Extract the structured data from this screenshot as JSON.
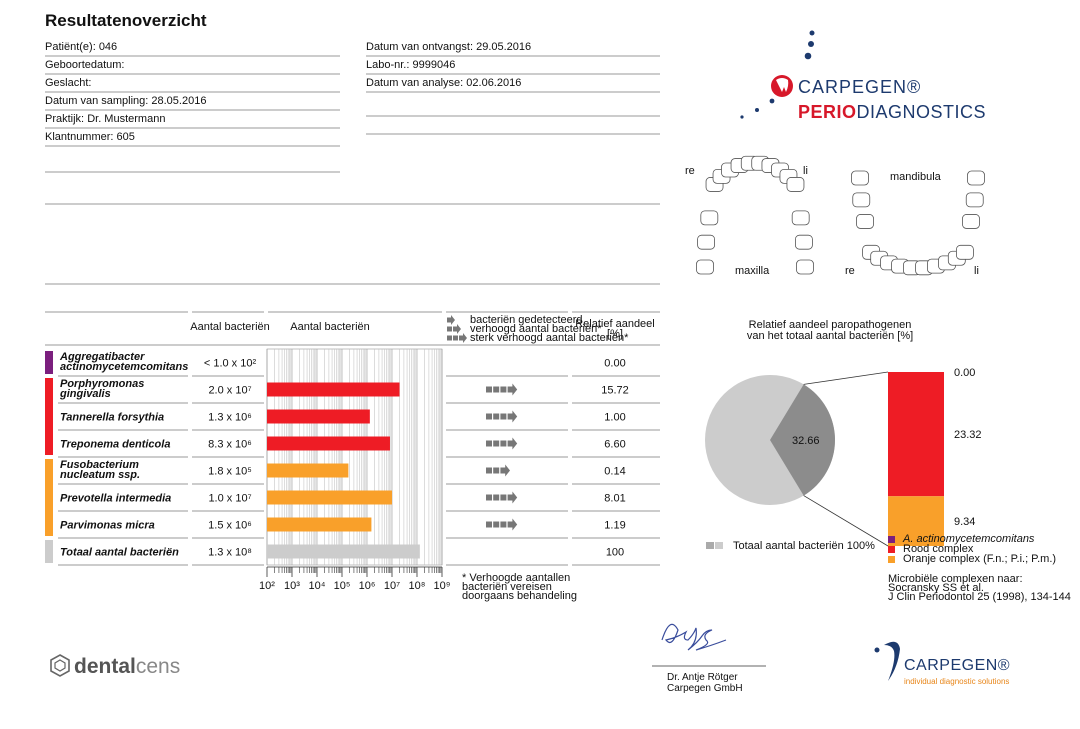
{
  "header": {
    "title": "Resultatenoverzicht"
  },
  "fields_left": [
    {
      "label": "Patiënt(e):",
      "value": "046"
    },
    {
      "label": "Geboortedatum:"
    },
    {
      "label": "Geslacht:"
    },
    {
      "label": "Datum van sampling:",
      "value": "28.05.2016"
    },
    {
      "label": "Praktijk:",
      "value": "Dr. Mustermann"
    },
    {
      "label": "Klantnummer:",
      "value": "605"
    }
  ],
  "fields_right": [
    {
      "label": "Datum van ontvangst:",
      "value": "29.05.2016"
    },
    {
      "label": "Labo-nr.:",
      "value": "9999046"
    },
    {
      "label": "Datum van analyse:",
      "value": "02.06.2016"
    }
  ],
  "logo_top": {
    "brand": "CARPEGEN®",
    "perio": "PERIO",
    "diagnostics": "DIAGNOSTICS"
  },
  "teeth": {
    "re_upper": "re",
    "li_upper": "li",
    "maxilla": "maxilla",
    "mandibula": "mandibula",
    "re_lower": "re",
    "li_lower": "li"
  },
  "table": {
    "col_count": "Aantal bacteriën",
    "col_bar": "Aantal bacteriën",
    "legend": [
      "bacteriën gedetecteerd",
      "verhoogd aantal bacteriën*",
      "sterk verhoogd aantal bacteriën*"
    ],
    "col_relative": [
      "Relatief aandeel",
      "[%]"
    ],
    "log": true,
    "xlim": [
      100,
      1000000000
    ],
    "xticks": [
      {
        "value": 100,
        "label": "10²"
      },
      {
        "value": 1000,
        "label": "10³"
      },
      {
        "value": 10000,
        "label": "10⁴"
      },
      {
        "value": 100000,
        "label": "10⁵"
      },
      {
        "value": 1000000,
        "label": "10⁶"
      },
      {
        "value": 10000000,
        "label": "10⁷"
      },
      {
        "value": 100000000,
        "label": "10⁸"
      },
      {
        "value": 1000000000,
        "label": "10⁹"
      }
    ],
    "rows": [
      {
        "name": [
          "Aggregatibacter",
          "actinomycetemcomitans"
        ],
        "color": "#7b1f7e",
        "count": 100,
        "count_label": "< 1.0 x 10²",
        "level": 0,
        "relative": "0.00"
      },
      {
        "name": [
          "Porphyromonas",
          "gingivalis"
        ],
        "color": "#ee1c25",
        "count": 20000000,
        "count_label": "2.0 x 10⁷",
        "level": 3,
        "relative": "15.72"
      },
      {
        "name": [
          "Tannerella forsythia"
        ],
        "color": "#ee1c25",
        "count": 1300000,
        "count_label": "1.3 x 10⁶",
        "level": 3,
        "relative": "1.00"
      },
      {
        "name": [
          "Treponema denticola"
        ],
        "color": "#ee1c25",
        "count": 8300000,
        "count_label": "8.3 x 10⁶",
        "level": 3,
        "relative": "6.60"
      },
      {
        "name": [
          "Fusobacterium",
          "nucleatum ssp."
        ],
        "color": "#f9a02a",
        "count": 180000,
        "count_label": "1.8 x 10⁵",
        "level": 2,
        "relative": "0.14"
      },
      {
        "name": [
          "Prevotella intermedia"
        ],
        "color": "#f9a02a",
        "count": 10000000,
        "count_label": "1.0 x 10⁷",
        "level": 3,
        "relative": "8.01"
      },
      {
        "name": [
          "Parvimonas micra"
        ],
        "color": "#f9a02a",
        "count": 1500000,
        "count_label": "1.5 x 10⁶",
        "level": 3,
        "relative": "1.19"
      },
      {
        "name": [
          "Totaal aantal bacteriën"
        ],
        "color": "#cccccc",
        "count": 130000000,
        "count_label": "1.3 x 10⁸",
        "level": 0,
        "relative": "100"
      }
    ],
    "footnote": [
      "*  Verhoogde aantallen",
      "bacteriën vereisen",
      "doorgaans behandeling"
    ]
  },
  "pie": {
    "title": [
      "Relatief aandeel paropathogenen",
      "van het totaal aantal bacteriën [%]"
    ],
    "slice": 32.66,
    "total_color": "#cccccc",
    "slice_color": "#8c8c8c",
    "stack": {
      "values": [
        0,
        23.32,
        9.34
      ],
      "value_labels": [
        "0.00",
        "23.32",
        "9.34"
      ],
      "colors": [
        "#7b1f7e",
        "#ee1c25",
        "#f9a02a"
      ]
    },
    "legend_total": "Totaal aantal bacteriën 100%",
    "legend": [
      "A. actinomycetemcomitans",
      "Rood complex",
      "Oranje complex (F.n.; P.i.; P.m.)"
    ],
    "reference": [
      "Microbiële complexen naar:",
      "Socransky SS et al.",
      "J Clin Periodontol 25 (1998), 134-144"
    ]
  },
  "signature": {
    "name": "Dr. Antje Rötger",
    "company": "Carpegen GmbH"
  },
  "logos": {
    "dental": "dental",
    "cens": "cens",
    "carpegen": "CARPEGEN®",
    "tagline": "individual diagnostic solutions"
  }
}
